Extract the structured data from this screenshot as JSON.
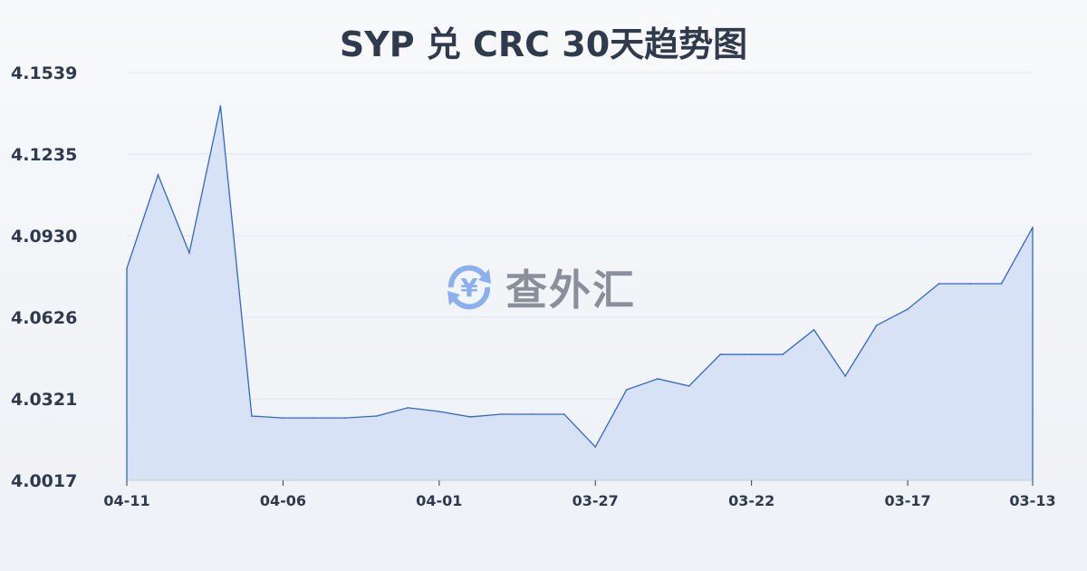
{
  "chart_data": {
    "type": "area",
    "title": "SYP 兑 CRC 30天趋势图",
    "xlabel": "",
    "ylabel": "",
    "ylim": [
      4.0017,
      4.1539
    ],
    "yticks": [
      "4.1539",
      "4.1235",
      "4.0930",
      "4.0626",
      "4.0321",
      "4.0017"
    ],
    "xticks": [
      {
        "index": 0,
        "label": "04-11"
      },
      {
        "index": 5,
        "label": "04-06"
      },
      {
        "index": 10,
        "label": "04-01"
      },
      {
        "index": 15,
        "label": "03-27"
      },
      {
        "index": 20,
        "label": "03-22"
      },
      {
        "index": 25,
        "label": "03-17"
      },
      {
        "index": 29,
        "label": "03-13"
      }
    ],
    "values": [
      4.0808,
      4.1157,
      4.0866,
      4.1414,
      4.0257,
      4.025,
      4.025,
      4.025,
      4.0257,
      4.0288,
      4.0274,
      4.0254,
      4.0264,
      4.0264,
      4.0264,
      4.0142,
      4.0355,
      4.0396,
      4.0369,
      4.0487,
      4.0487,
      4.0487,
      4.0579,
      4.0406,
      4.0595,
      4.0656,
      4.0751,
      4.0751,
      4.0751,
      4.0961
    ],
    "grid": true,
    "line_color": "#3366cc",
    "fill_color": "#d5e0f5"
  },
  "watermark": {
    "text": "查外汇",
    "icon": "yen-exchange-icon",
    "color": "#8ab0f0"
  }
}
